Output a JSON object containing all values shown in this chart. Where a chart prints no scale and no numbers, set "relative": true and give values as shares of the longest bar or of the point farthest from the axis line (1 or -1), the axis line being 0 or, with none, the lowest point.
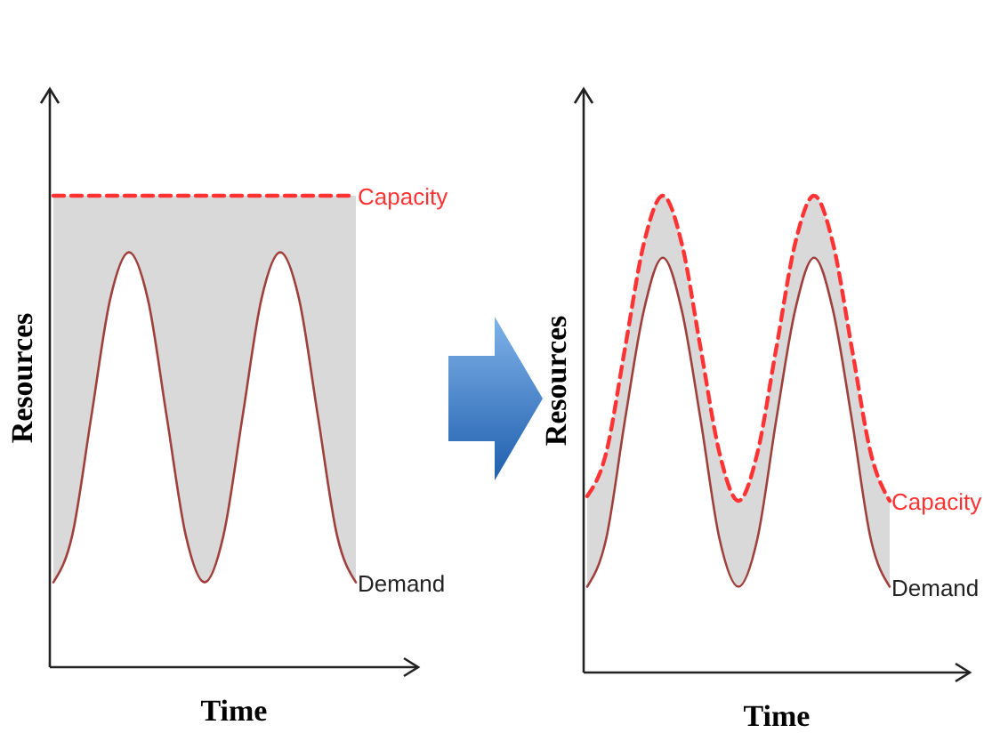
{
  "chart_data": [
    {
      "type": "line",
      "relative": true,
      "xlabel": "Time",
      "ylabel": "Resources",
      "categories": [
        null,
        null,
        null,
        null,
        null,
        null,
        null,
        null,
        null,
        null,
        null,
        null,
        null,
        null,
        null,
        null,
        null
      ],
      "series": [
        {
          "name": "Capacity",
          "color": "#ff3333",
          "line_style": "dashed",
          "values": [
            1,
            1,
            1,
            1,
            1,
            1,
            1,
            1,
            1,
            1,
            1,
            1,
            1,
            1,
            1,
            1,
            1
          ],
          "lower": [
            0.18,
            0.28,
            0.53,
            0.78,
            0.88,
            0.78,
            0.53,
            0.28,
            0.18,
            0.28,
            0.53,
            0.78,
            0.88,
            0.78,
            0.53,
            0.28,
            0.18
          ],
          "upper": [
            1,
            1,
            1,
            1,
            1,
            1,
            1,
            1,
            1,
            1,
            1,
            1,
            1,
            1,
            1,
            1,
            1
          ]
        },
        {
          "name": "Demand",
          "color": "#a0403c",
          "line_style": "solid",
          "values": [
            0.18,
            0.28,
            0.53,
            0.78,
            0.88,
            0.78,
            0.53,
            0.28,
            0.18,
            0.28,
            0.53,
            0.78,
            0.88,
            0.78,
            0.53,
            0.28,
            0.18
          ]
        }
      ]
    },
    {
      "type": "line",
      "relative": true,
      "xlabel": "Time",
      "ylabel": "Resources",
      "categories": [
        null,
        null,
        null,
        null,
        null,
        null,
        null,
        null,
        null,
        null,
        null,
        null,
        null,
        null,
        null,
        null,
        null
      ],
      "series": [
        {
          "name": "Capacity",
          "color": "#ff3333",
          "line_style": "dashed",
          "values": [
            0.37,
            0.46,
            0.68,
            0.9,
            1,
            0.9,
            0.68,
            0.46,
            0.36,
            0.46,
            0.68,
            0.9,
            1,
            0.9,
            0.68,
            0.46,
            0.36
          ],
          "lower": [
            0.18,
            0.28,
            0.53,
            0.76,
            0.87,
            0.76,
            0.53,
            0.28,
            0.18,
            0.28,
            0.53,
            0.76,
            0.87,
            0.76,
            0.53,
            0.28,
            0.18
          ],
          "upper": [
            0.37,
            0.46,
            0.68,
            0.9,
            1,
            0.9,
            0.68,
            0.46,
            0.36,
            0.46,
            0.68,
            0.9,
            1,
            0.9,
            0.68,
            0.46,
            0.36
          ]
        },
        {
          "name": "Demand",
          "color": "#a0403c",
          "line_style": "solid",
          "values": [
            0.18,
            0.28,
            0.53,
            0.76,
            0.87,
            0.76,
            0.53,
            0.28,
            0.18,
            0.28,
            0.53,
            0.76,
            0.87,
            0.76,
            0.53,
            0.28,
            0.18
          ]
        }
      ]
    }
  ]
}
